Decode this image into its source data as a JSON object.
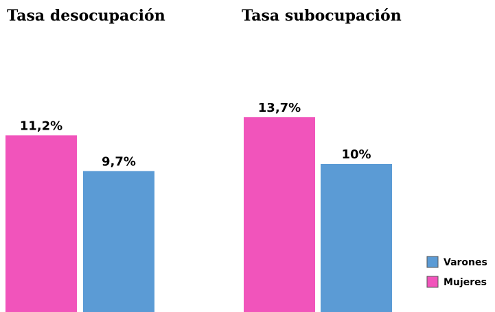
{
  "chart_data": [
    {
      "type": "bar",
      "title": "Tasa desocupación",
      "categories": [
        null,
        null
      ],
      "values": [
        11.2,
        9.7
      ],
      "value_labels": [
        "11,2%",
        "9,7%"
      ],
      "colors": [
        "#f154bb",
        "#5b9bd5"
      ]
    },
    {
      "type": "bar",
      "title": "Tasa subocupación",
      "categories": [
        null,
        null
      ],
      "values": [
        13.7,
        10
      ],
      "value_labels": [
        "13,7%",
        "10%"
      ],
      "colors": [
        "#f154bb",
        "#5b9bd5"
      ]
    }
  ],
  "legend": {
    "items": [
      {
        "name": "Varones",
        "color": "#5b9bd5"
      },
      {
        "name": "Mujeres",
        "color": "#f154bb"
      }
    ]
  }
}
